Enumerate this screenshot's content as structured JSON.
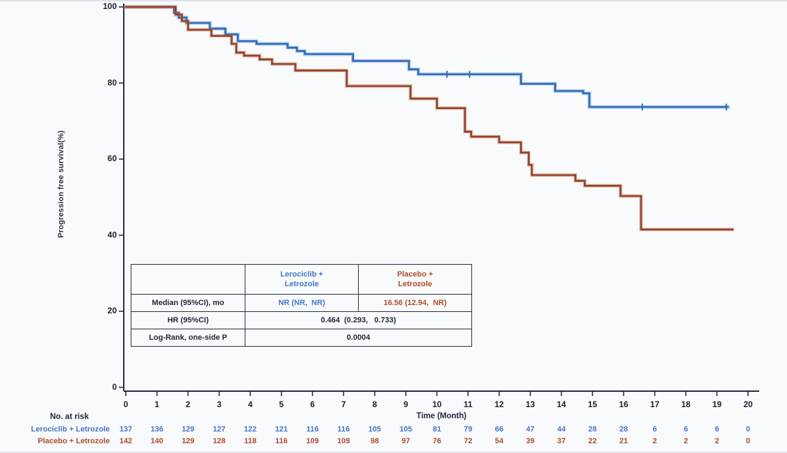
{
  "colors": {
    "background": "#f8fafc",
    "axis": "#2a2d42",
    "text_dark": "#23263c",
    "lerociclib_line": "#336cb8",
    "placebo_line": "#96432a",
    "lerociclib_text": "#4577c6",
    "placebo_text": "#b04a2c"
  },
  "chart_data": {
    "type": "line",
    "subtype": "kaplan-meier-step",
    "title": "",
    "xlabel": "Time (Month)",
    "ylabel": "Progression free survival(%)",
    "xlim": [
      0,
      20
    ],
    "ylim": [
      0,
      100
    ],
    "grid": false,
    "x_ticks": [
      0,
      1,
      2,
      3,
      4,
      5,
      6,
      7,
      8,
      9,
      10,
      11,
      12,
      13,
      14,
      15,
      16,
      17,
      18,
      19,
      20
    ],
    "y_ticks": [
      0,
      20,
      40,
      60,
      80,
      100
    ],
    "series": [
      {
        "name": "Lerociclib + Letrozole",
        "color": "#336cb8",
        "halo": "rgba(110,160,215,0.38)",
        "step_points": [
          [
            0,
            100
          ],
          [
            1.45,
            100
          ],
          [
            1.55,
            98.5
          ],
          [
            1.7,
            97.2
          ],
          [
            1.95,
            95.8
          ],
          [
            2.7,
            94.3
          ],
          [
            3.2,
            92.8
          ],
          [
            3.6,
            91.0
          ],
          [
            4.2,
            90.3
          ],
          [
            5.2,
            89.3
          ],
          [
            5.5,
            88.4
          ],
          [
            5.75,
            87.6
          ],
          [
            7.3,
            85.8
          ],
          [
            9.1,
            83.6
          ],
          [
            9.4,
            82.3
          ],
          [
            12.7,
            79.8
          ],
          [
            13.8,
            77.9
          ],
          [
            14.7,
            77.3
          ],
          [
            14.9,
            73.7
          ],
          [
            19.35,
            73.7
          ]
        ],
        "censor_marks": [
          [
            10.32,
            82.3
          ],
          [
            11.05,
            82.3
          ],
          [
            16.6,
            73.7
          ],
          [
            19.3,
            73.7
          ]
        ]
      },
      {
        "name": "Placebo + Letrozole",
        "color": "#96432a",
        "halo": "rgba(200,130,95,0.35)",
        "step_points": [
          [
            0,
            100
          ],
          [
            1.45,
            100
          ],
          [
            1.6,
            98.0
          ],
          [
            1.8,
            96.3
          ],
          [
            2.0,
            94.0
          ],
          [
            2.75,
            92.4
          ],
          [
            3.4,
            90.3
          ],
          [
            3.55,
            88.0
          ],
          [
            3.8,
            87.2
          ],
          [
            4.3,
            86.2
          ],
          [
            4.7,
            85.0
          ],
          [
            5.45,
            83.3
          ],
          [
            7.1,
            79.2
          ],
          [
            9.15,
            75.9
          ],
          [
            10.0,
            73.4
          ],
          [
            10.9,
            67.2
          ],
          [
            11.1,
            65.9
          ],
          [
            12.0,
            64.4
          ],
          [
            12.7,
            61.7
          ],
          [
            12.95,
            58.5
          ],
          [
            13.05,
            55.8
          ],
          [
            14.45,
            54.3
          ],
          [
            14.75,
            53.0
          ],
          [
            15.9,
            50.3
          ],
          [
            16.56,
            41.5
          ],
          [
            19.5,
            41.5
          ]
        ],
        "censor_marks": [
          [
            16.56,
            47.3
          ]
        ]
      }
    ]
  },
  "stats_table": {
    "col_headers": [
      "",
      "Lerociclib +\nLetrozole",
      "Placebo +\nLetrozole"
    ],
    "median_row": {
      "label": "Median (95%CI), mo",
      "lerociclib": "NR (NR,  NR)",
      "placebo": "16.56 (12.94,  NR)"
    },
    "hr_row": {
      "label": "HR (95%CI)",
      "value": "0.464  (0.293,   0.733)"
    },
    "logrank_row": {
      "label": "Log-Rank, one-side P",
      "value": "0.0004"
    }
  },
  "risk_table": {
    "title": "No. at risk",
    "rows": [
      {
        "label": "Lerociclib + Letrozole",
        "values": [
          137,
          136,
          129,
          127,
          122,
          121,
          116,
          116,
          105,
          105,
          81,
          79,
          66,
          47,
          44,
          28,
          28,
          6,
          6,
          6,
          0
        ]
      },
      {
        "label": "Placebo + Letrozole",
        "values": [
          142,
          140,
          129,
          128,
          118,
          116,
          109,
          109,
          98,
          97,
          76,
          72,
          54,
          39,
          37,
          22,
          21,
          2,
          2,
          2,
          0
        ]
      }
    ]
  }
}
